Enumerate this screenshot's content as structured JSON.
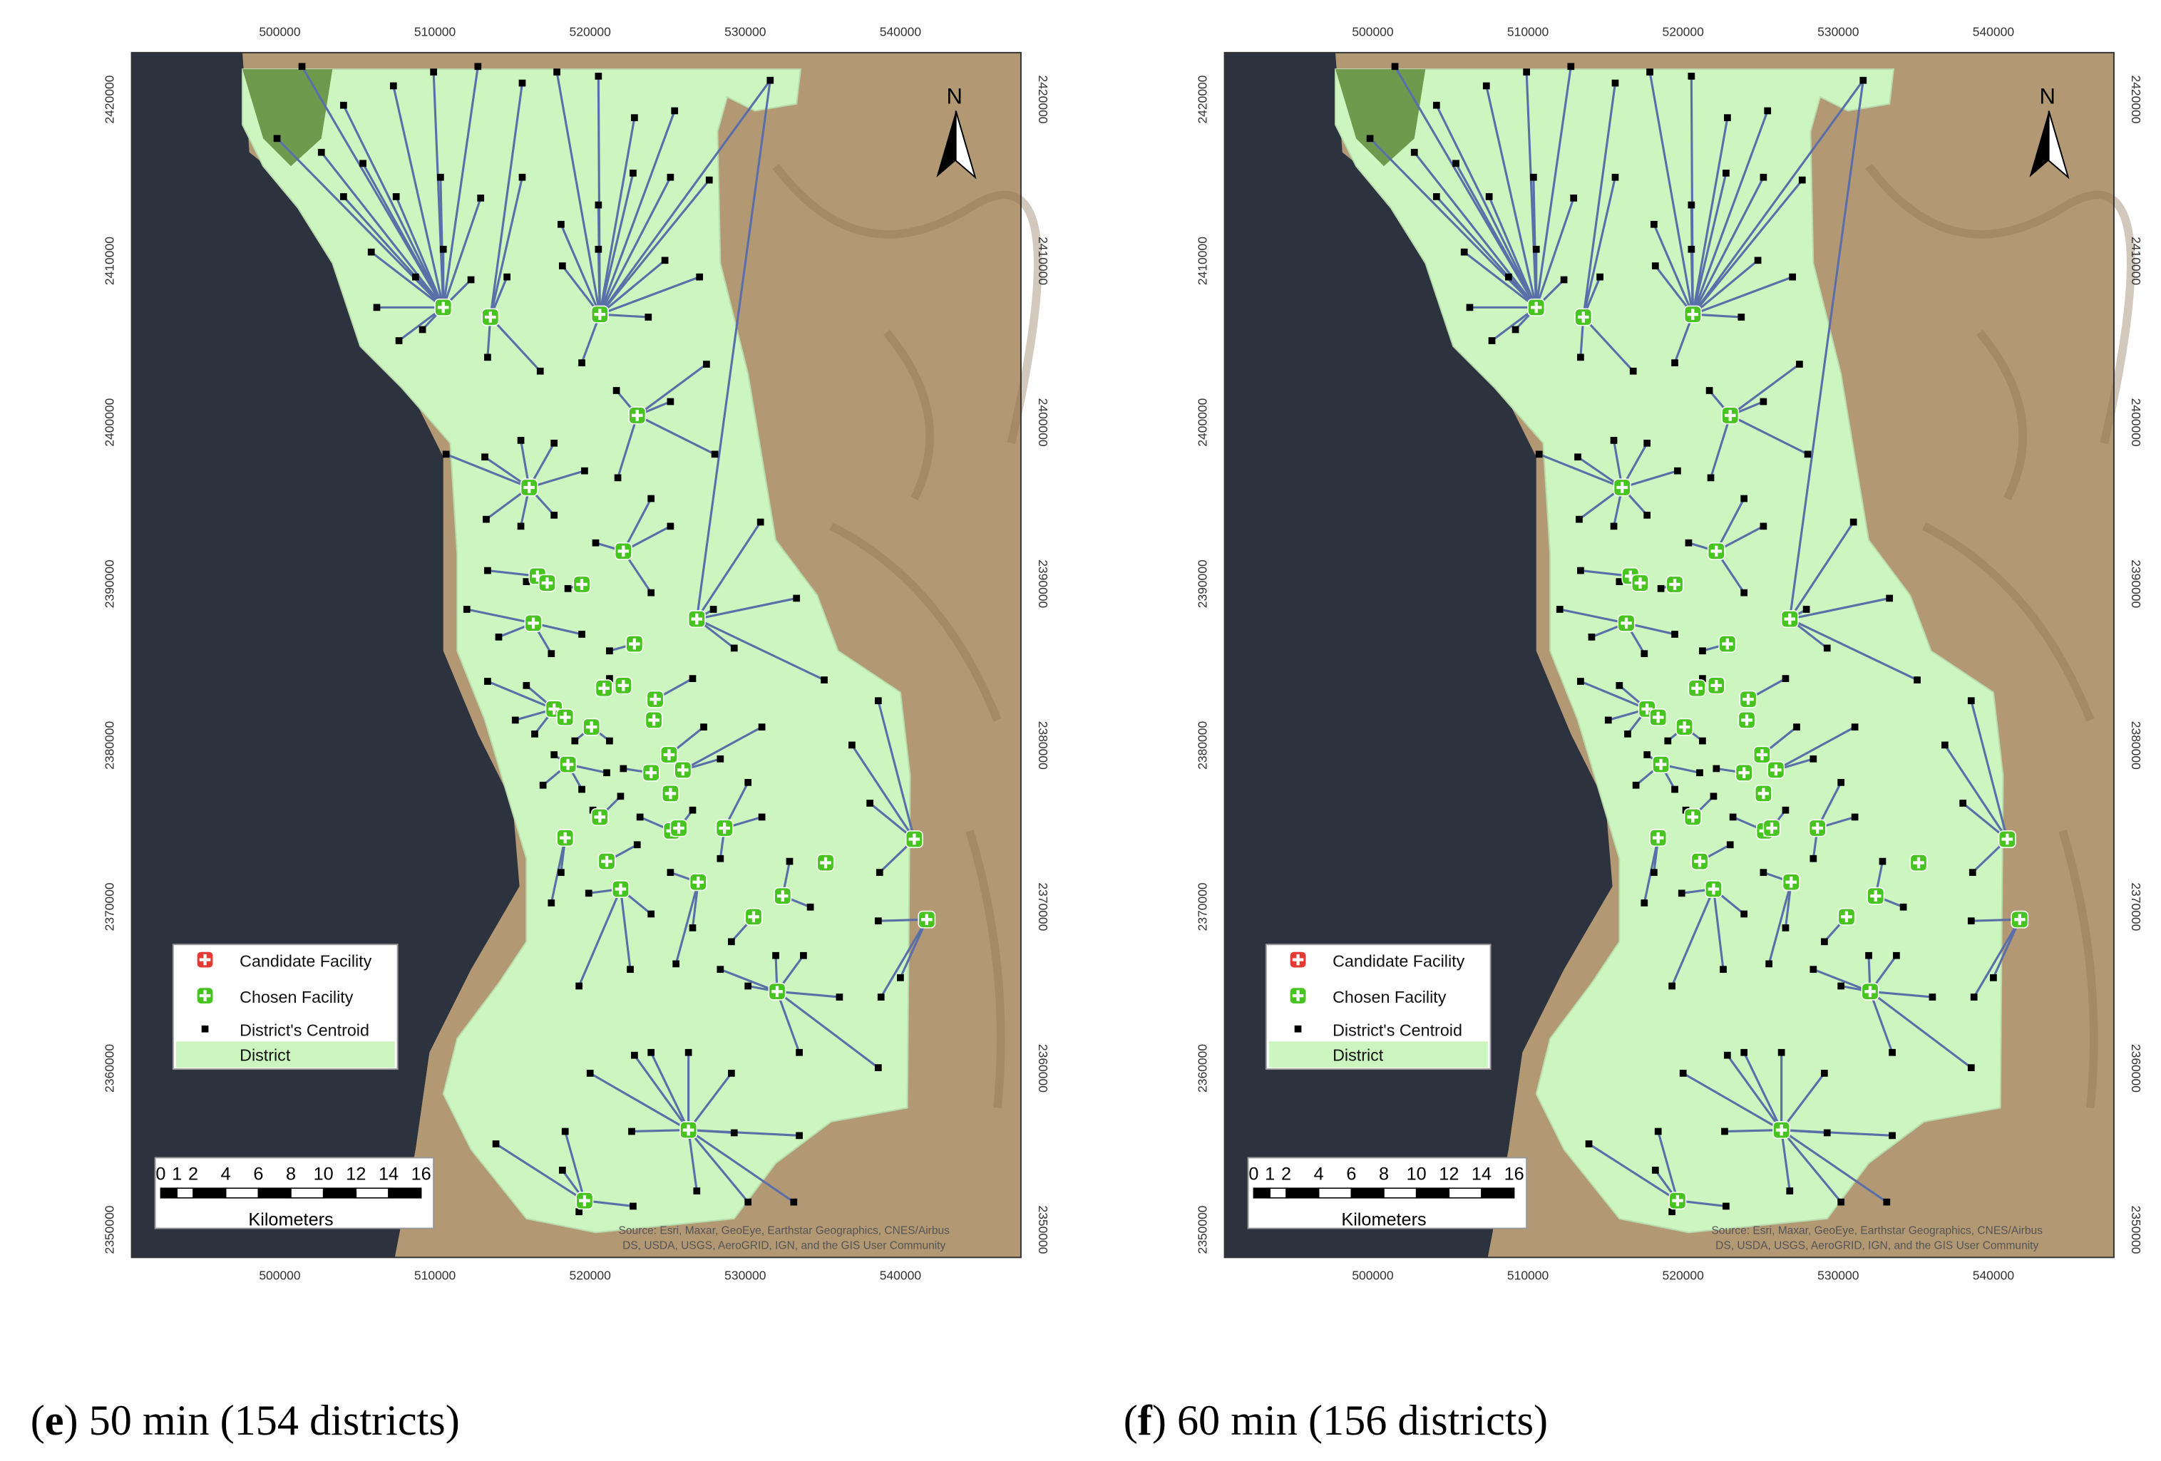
{
  "map_axes": {
    "x_ticks": [
      500000,
      510000,
      520000,
      530000,
      540000
    ],
    "y_ticks": [
      2350000,
      2360000,
      2370000,
      2380000,
      2390000,
      2400000,
      2410000,
      2420000
    ]
  },
  "north": "N",
  "legend": [
    "Candidate Facility",
    "Chosen Facility",
    "District's Centroid",
    "District"
  ],
  "scale_bar": {
    "labels": [
      0,
      1,
      2,
      4,
      6,
      8,
      10,
      12,
      14,
      16
    ],
    "unit": "Kilometers"
  },
  "source": [
    "Source: Esri, Maxar, GeoEye, Earthstar Geographics, CNES/Airbus",
    "DS, USDA, USGS, AeroGRID, IGN, and the GIS User Community"
  ],
  "panels": [
    {
      "caption": {
        "prefix": "(",
        "letter": "e",
        "suffix": ") 50 min (154 districts)"
      }
    },
    {
      "caption": {
        "prefix": "(",
        "letter": "f",
        "suffix": ") 60 min (156 districts)"
      }
    }
  ]
}
